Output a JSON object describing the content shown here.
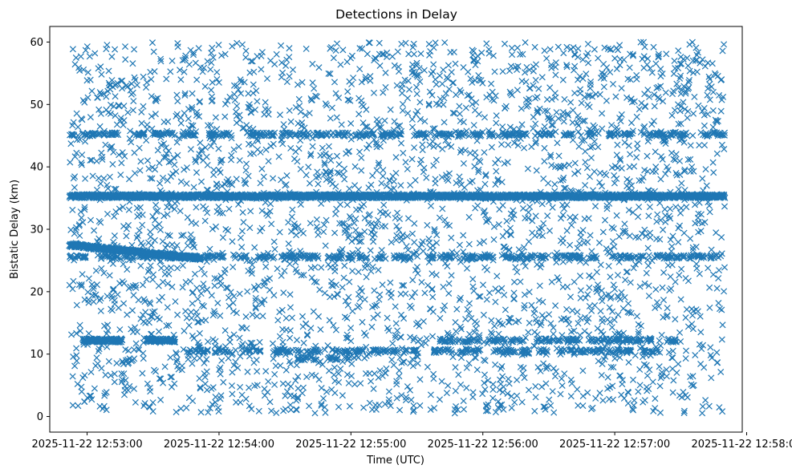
{
  "chart_data": {
    "type": "scatter",
    "title": "Detections in Delay",
    "xlabel": "Time (UTC)",
    "ylabel": "Bistatic Delay (km)",
    "x_axis_kind": "datetime",
    "xlim": [
      "2025-11-22 12:52:43",
      "2025-11-22 12:57:58"
    ],
    "ylim": [
      -2.5,
      62.5
    ],
    "x_ticks": [
      "2025-11-22 12:53:00",
      "2025-11-22 12:54:00",
      "2025-11-22 12:55:00",
      "2025-11-22 12:56:00",
      "2025-11-22 12:57:00",
      "2025-11-22 12:58:00"
    ],
    "y_ticks": [
      "0",
      "10",
      "20",
      "30",
      "40",
      "50",
      "60"
    ],
    "marker": "x",
    "color": "#1f77b4",
    "grid": false,
    "legend": "none",
    "time_range": [
      "2025-11-22 12:52:52",
      "2025-11-22 12:57:50"
    ],
    "delay_range": [
      0.5,
      60
    ],
    "series": [
      {
        "band_center": 35.3,
        "time_range": [
          "2025-11-22 12:52:52",
          "2025-11-22 12:57:50"
        ],
        "density": "continuous"
      },
      {
        "band_center": 45.2,
        "time_range": [
          "2025-11-22 12:52:52",
          "2025-11-22 12:57:50"
        ],
        "density": "intermittent"
      },
      {
        "band_center": 25.6,
        "time_range": [
          "2025-11-22 12:52:52",
          "2025-11-22 12:57:50"
        ],
        "density": "intermittent"
      },
      {
        "band_center": 27.5,
        "time_range": [
          "2025-11-22 12:52:52",
          "2025-11-22 12:53:52"
        ],
        "drift_to": 25.3,
        "density": "continuous"
      },
      {
        "band_center": 12.2,
        "time_range": [
          "2025-11-22 12:52:58",
          "2025-11-22 12:53:16"
        ],
        "density": "continuous"
      },
      {
        "band_center": 12.2,
        "time_range": [
          "2025-11-22 12:53:27",
          "2025-11-22 12:53:40"
        ],
        "density": "continuous"
      },
      {
        "band_center": 12.2,
        "time_range": [
          "2025-11-22 12:55:40",
          "2025-11-22 12:57:30"
        ],
        "density": "intermittent"
      },
      {
        "band_center": 10.5,
        "time_range": [
          "2025-11-22 12:53:45",
          "2025-11-22 12:57:20"
        ],
        "density": "intermittent"
      },
      {
        "band_center": 9.3,
        "time_range": [
          "2025-11-22 12:54:35",
          "2025-11-22 12:55:00"
        ],
        "density": "intermittent"
      },
      {
        "time_range": [
          "2025-11-22 12:52:52",
          "2025-11-22 12:57:50"
        ],
        "delay_range": [
          0.5,
          60
        ],
        "density": "scattered"
      }
    ]
  }
}
